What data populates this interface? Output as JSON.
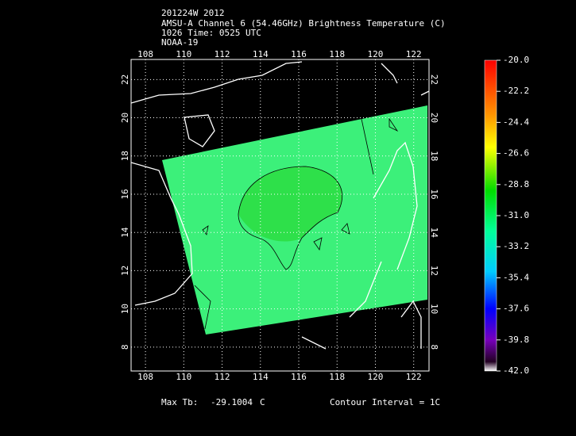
{
  "header": {
    "lines": [
      "201224W 2012",
      "AMSU-A Channel 6 (54.46GHz) Brightness Temperature (C)",
      "1026 Time: 0525 UTC",
      "NOAA-19"
    ]
  },
  "map": {
    "lon_range": [
      107.25,
      122.8
    ],
    "lat_range": [
      6.75,
      23.05
    ],
    "lon_ticks": [
      108,
      110,
      112,
      114,
      116,
      118,
      120,
      122
    ],
    "lat_ticks": [
      8,
      10,
      12,
      14,
      16,
      18,
      20,
      22
    ]
  },
  "colorbar": {
    "range": [
      -42,
      -20
    ],
    "ticks": [
      {
        "value": -20,
        "label": "-20.0"
      },
      {
        "value": -22.2,
        "label": "-22.2"
      },
      {
        "value": -24.4,
        "label": "-24.4"
      },
      {
        "value": -26.6,
        "label": "-26.6"
      },
      {
        "value": -28.8,
        "label": "-28.8"
      },
      {
        "value": -31,
        "label": "-31.0"
      },
      {
        "value": -33.2,
        "label": "-33.2"
      },
      {
        "value": -35.4,
        "label": "-35.4"
      },
      {
        "value": -37.6,
        "label": "-37.6"
      },
      {
        "value": -39.8,
        "label": "-39.8"
      },
      {
        "value": -42,
        "label": "-42.0"
      }
    ]
  },
  "footer": {
    "max_label": "Max Tb:",
    "max_value": "-29.1004",
    "unit": "C",
    "contour": "Contour Interval = 1C"
  }
}
